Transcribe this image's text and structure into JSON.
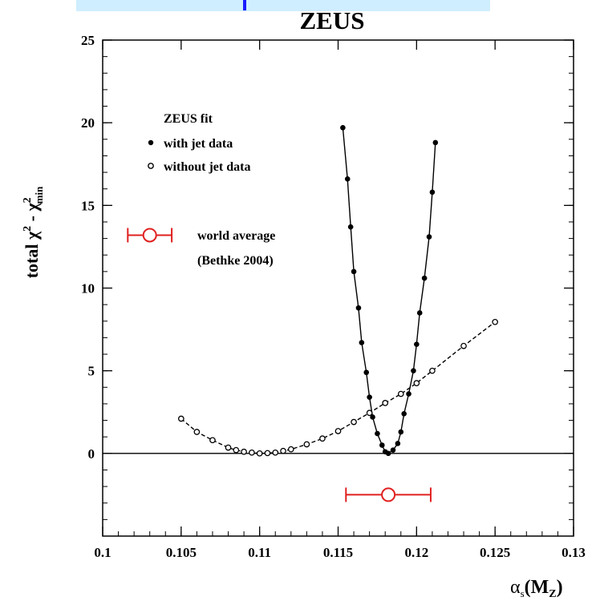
{
  "chart_data": {
    "type": "scatter",
    "title": "ZEUS",
    "xlabel": "αs(MZ)",
    "ylabel": "total χ² - χ²min",
    "xlim": [
      0.1,
      0.13
    ],
    "ylim": [
      -5,
      25
    ],
    "x_ticks": [
      0.1,
      0.105,
      0.11,
      0.115,
      0.12,
      0.125,
      0.13
    ],
    "x_tick_labels": [
      "0.1",
      "0.105",
      "0.11",
      "0.115",
      "0.12",
      "0.125",
      "0.13"
    ],
    "y_ticks": [
      0,
      5,
      10,
      15,
      20,
      25
    ],
    "y_tick_labels": [
      "0",
      "5",
      "10",
      "15",
      "20",
      "25"
    ],
    "legend": {
      "header": "ZEUS fit",
      "placement": "top-left",
      "entries": [
        "with jet data",
        "without jet data"
      ]
    },
    "series": [
      {
        "name": "with jet data",
        "marker": "filled-circle",
        "color": "#000000",
        "line": "solid",
        "x": [
          0.1153,
          0.1156,
          0.1158,
          0.116,
          0.1163,
          0.1165,
          0.1168,
          0.117,
          0.1172,
          0.1175,
          0.1178,
          0.118,
          0.1182,
          0.1185,
          0.1188,
          0.119,
          0.1192,
          0.1195,
          0.1198,
          0.12,
          0.1202,
          0.1205,
          0.1208,
          0.121,
          0.1212
        ],
        "y": [
          19.7,
          16.6,
          13.7,
          11.0,
          8.8,
          6.7,
          4.9,
          3.4,
          2.2,
          1.2,
          0.5,
          0.1,
          0.0,
          0.2,
          0.6,
          1.3,
          2.4,
          3.6,
          5.0,
          6.6,
          8.5,
          10.6,
          13.1,
          15.8,
          18.8
        ]
      },
      {
        "name": "without jet data",
        "marker": "open-circle",
        "color": "#000000",
        "line": "dashed",
        "x": [
          0.105,
          0.106,
          0.107,
          0.108,
          0.1085,
          0.109,
          0.1095,
          0.11,
          0.1105,
          0.111,
          0.1115,
          0.112,
          0.113,
          0.114,
          0.115,
          0.116,
          0.117,
          0.118,
          0.119,
          0.12,
          0.121,
          0.123,
          0.125
        ],
        "y": [
          2.1,
          1.3,
          0.8,
          0.35,
          0.2,
          0.1,
          0.05,
          0.0,
          0.02,
          0.05,
          0.15,
          0.25,
          0.55,
          0.9,
          1.35,
          1.9,
          2.45,
          3.05,
          3.6,
          4.25,
          5.0,
          6.5,
          7.95
        ]
      }
    ],
    "world_average": {
      "label_line1": "world average",
      "label_line2": "(Bethke 2004)",
      "value": 0.1182,
      "error": 0.0027,
      "plot_y": -2.5,
      "legend_key_x": 0.103,
      "legend_key_error": 0.0014,
      "legend_key_y": 13.2,
      "color": "#e02020"
    },
    "reference_line_y": 0
  }
}
